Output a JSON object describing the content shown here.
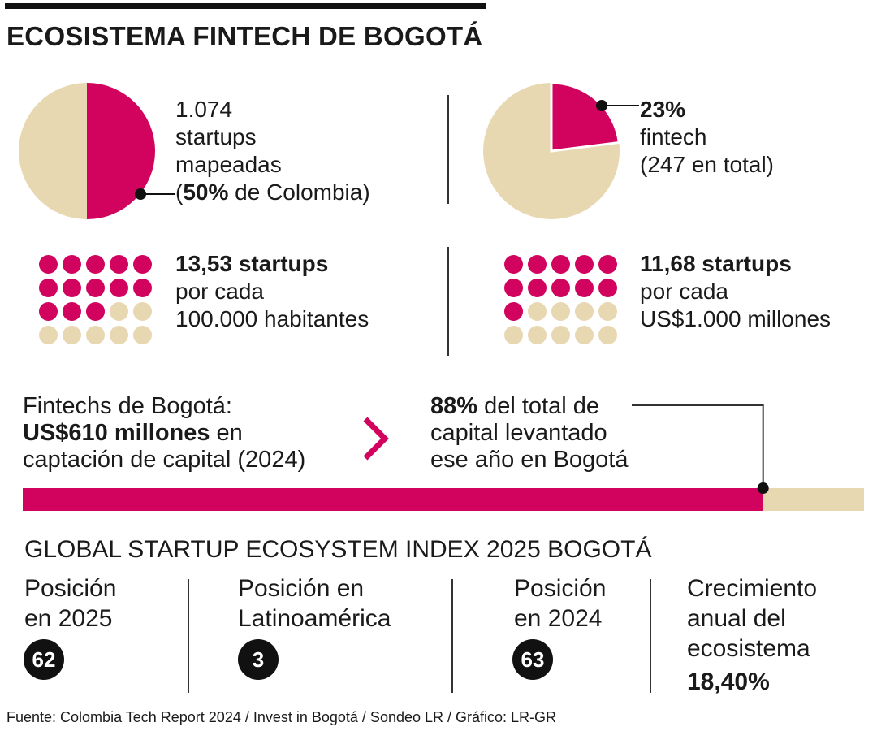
{
  "title": "ECOSISTEMA FINTECH DE BOGOTÁ",
  "colors": {
    "accent": "#d1035f",
    "neutral": "#e8d8b2",
    "text": "#1a1a1a"
  },
  "chart_data": [
    {
      "type": "pie",
      "values": [
        50,
        50
      ],
      "highlight_share": 50,
      "text": {
        "l1": "1.074",
        "l2": "startups",
        "l3": "mapeadas",
        "open": "(",
        "bold": "50%",
        "rest": " de Colombia)"
      }
    },
    {
      "type": "pie",
      "values": [
        23,
        77
      ],
      "highlight_share": 23,
      "text": {
        "bold": "23%",
        "l2": "fintech",
        "l3": "(247 en total)"
      }
    },
    {
      "type": "waffle",
      "value": 13.53,
      "filled": 13,
      "total": 20,
      "text": {
        "bold": "13,53 startups",
        "l2": "por cada",
        "l3": "100.000 habitantes"
      }
    },
    {
      "type": "waffle",
      "value": 11.68,
      "filled": 11,
      "total": 20,
      "text": {
        "bold": "11,68 startups",
        "l2": "por cada",
        "l3": "US$1.000 millones"
      }
    },
    {
      "type": "bar",
      "share": 88,
      "left_text": {
        "l1": "Fintechs de Bogotá:",
        "bold": "US$610 millones",
        "rest": " en",
        "l3": "captación de capital (2024)"
      },
      "right_text": {
        "bold": "88%",
        "rest": " del total de",
        "l2": "capital levantado",
        "l3": "ese año en Bogotá"
      }
    }
  ],
  "index": {
    "title": "GLOBAL STARTUP ECOSYSTEM INDEX 2025 BOGOTÁ",
    "items": [
      {
        "label": "Posición\nen 2025",
        "value": "62"
      },
      {
        "label": "Posición en\nLatinoamérica",
        "value": "3"
      },
      {
        "label": "Posición\nen 2024",
        "value": "63"
      },
      {
        "label": "Crecimiento\nanual del\necosistema",
        "value": "18,40%"
      }
    ]
  },
  "source": "Fuente: Colombia Tech Report 2024 / Invest in Bogotá / Sondeo LR / Gráfico: LR-GR"
}
